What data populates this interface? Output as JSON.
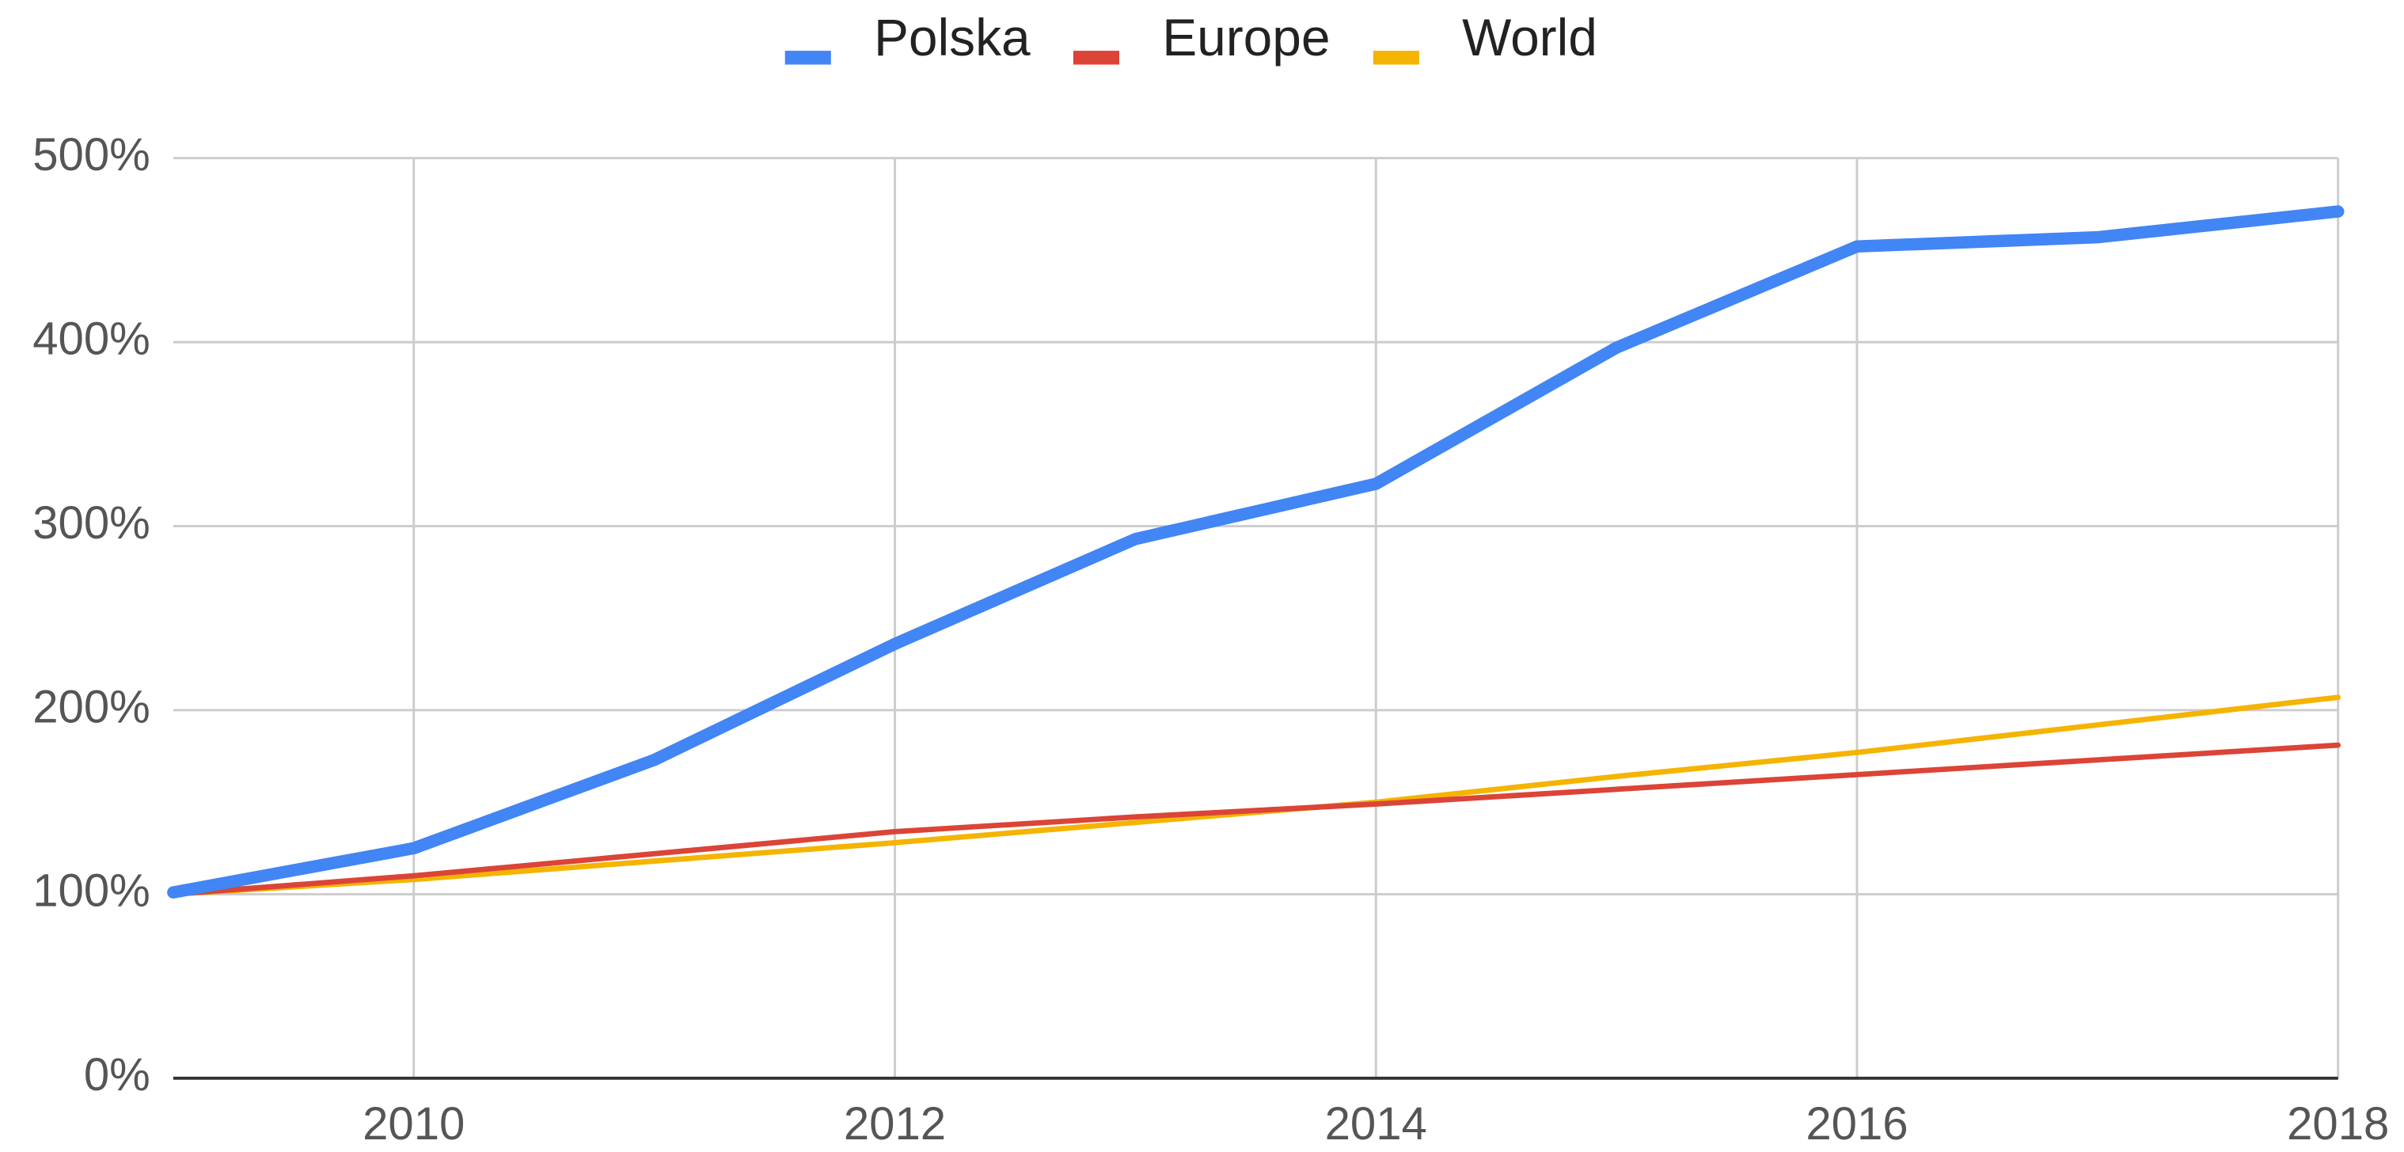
{
  "chart_data": {
    "type": "line",
    "x": [
      2009,
      2010,
      2011,
      2012,
      2013,
      2014,
      2015,
      2016,
      2017,
      2018
    ],
    "series": [
      {
        "name": "Polska",
        "color": "#4285f4",
        "values": [
          101,
          125,
          173,
          236,
          293,
          323,
          397,
          452,
          457,
          471
        ]
      },
      {
        "name": "Europe",
        "color": "#db4437",
        "values": [
          100,
          110,
          122,
          134,
          142,
          149,
          157,
          165,
          173,
          181
        ]
      },
      {
        "name": "World",
        "color": "#f4b400",
        "values": [
          100,
          108,
          118,
          128,
          139,
          150,
          164,
          177,
          192,
          207
        ]
      }
    ],
    "xlim": [
      2009,
      2018
    ],
    "xticks": [
      2010,
      2012,
      2014,
      2016,
      2018
    ],
    "ylim": [
      0,
      500
    ],
    "yticks": [
      {
        "value": 0,
        "label": "0%"
      },
      {
        "value": 100,
        "label": "100%"
      },
      {
        "value": 200,
        "label": "200%"
      },
      {
        "value": 300,
        "label": "300%"
      },
      {
        "value": 400,
        "label": "400%"
      },
      {
        "value": 500,
        "label": "500%"
      }
    ],
    "grid": true,
    "legend": "top"
  }
}
